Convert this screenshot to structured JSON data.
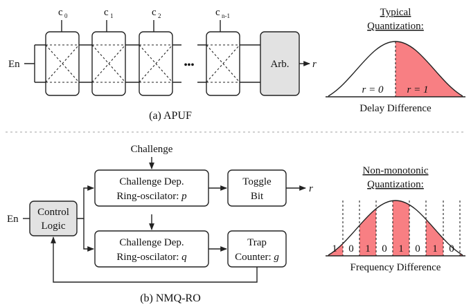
{
  "apuf": {
    "challenges": [
      "c",
      "c",
      "c",
      "c"
    ],
    "challenge_subs": [
      "0",
      "1",
      "2",
      "n-1"
    ],
    "enable": "En",
    "ellipsis": "•••",
    "arbiter": "Arb.",
    "output": "r",
    "caption": "(a) APUF"
  },
  "typical": {
    "title_line1": "Typical",
    "title_line2": "Quantization:",
    "label_r0": "r = 0",
    "label_r1": "r = 1",
    "axis_label": "Delay Difference",
    "colors": {
      "highlight": "#f87f83"
    }
  },
  "nmq": {
    "challenge": "Challenge",
    "enable": "En",
    "control_l1": "Control",
    "control_l2": "Logic",
    "ro_p_l1": "Challenge Dep.",
    "ro_p_l2": "Ring-oscilator: ",
    "ro_p_var": "p",
    "ro_q_l1": "Challenge Dep.",
    "ro_q_l2": "Ring-oscilator: ",
    "ro_q_var": "q",
    "toggle_l1": "Toggle",
    "toggle_l2": "Bit",
    "trap_l1": "Trap",
    "trap_l2": "Counter: ",
    "trap_var": "g",
    "output": "r",
    "caption": "(b) NMQ-RO"
  },
  "nonmono": {
    "title_line1": "Non-monotonic",
    "title_line2": "Quantization:",
    "bits": [
      "1",
      "0",
      "1",
      "0",
      "1",
      "0",
      "1",
      "0"
    ],
    "axis_label": "Frequency Difference"
  }
}
